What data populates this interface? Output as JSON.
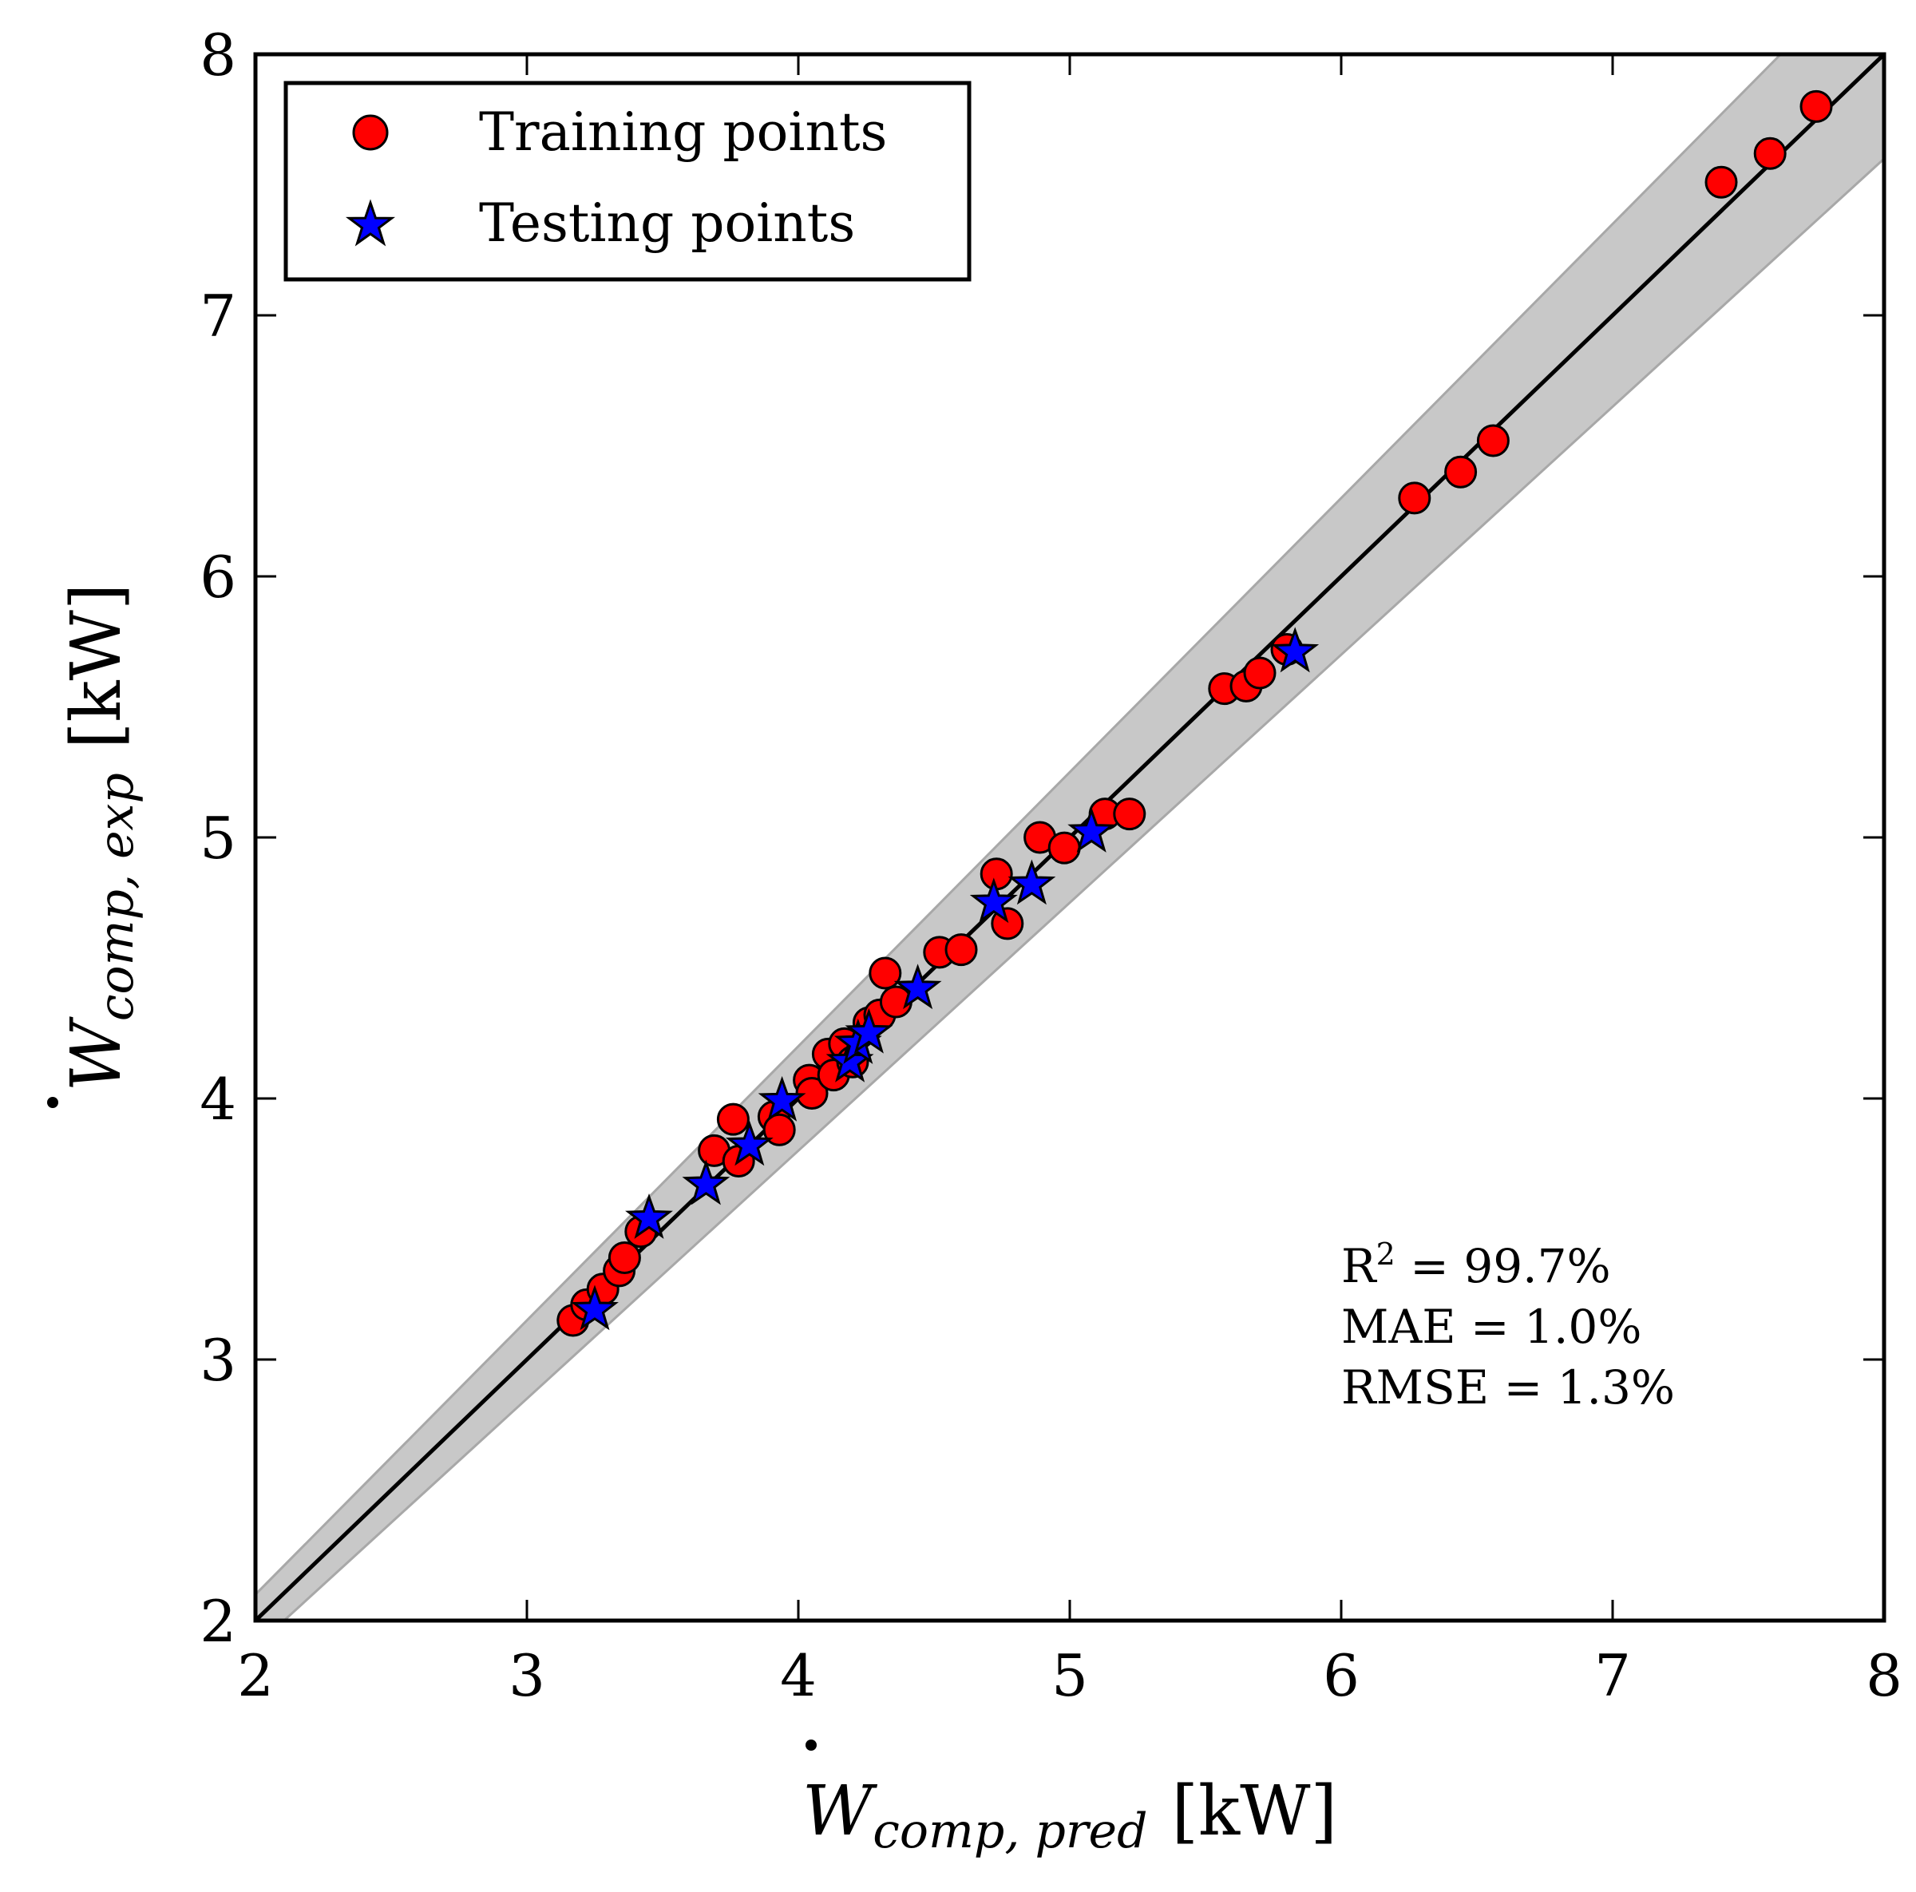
{
  "chart_data": {
    "type": "scatter",
    "xlabel": {
      "symbol": "W",
      "subscript": "comp, pred",
      "unit": "[kW]"
    },
    "ylabel": {
      "symbol": "W",
      "subscript": "comp, exp",
      "unit": "[kW]"
    },
    "xlim": [
      2,
      8
    ],
    "ylim": [
      2,
      8
    ],
    "xticks": [
      "2",
      "3",
      "4",
      "5",
      "6",
      "7",
      "8"
    ],
    "yticks": [
      "2",
      "3",
      "4",
      "5",
      "6",
      "7",
      "8"
    ],
    "legend_position": "top-left",
    "reference_line": {
      "slope": 1
    },
    "tolerance_band": {
      "upper_slope": 1.05,
      "lower_slope": 0.95,
      "color": "#c8c8c8"
    },
    "stats": {
      "r2_prefix": "R",
      "r2_sup": "2",
      "r2_rest": " = 99.7%",
      "mae": "MAE = 1.0%",
      "rmse": "RMSE = 1.3%"
    },
    "series": [
      {
        "name": "Training points",
        "marker": "circle",
        "color": "#ff0000",
        "points": [
          [
            3.17,
            3.15
          ],
          [
            3.22,
            3.21
          ],
          [
            3.28,
            3.27
          ],
          [
            3.34,
            3.34
          ],
          [
            3.36,
            3.39
          ],
          [
            3.42,
            3.49
          ],
          [
            3.69,
            3.8
          ],
          [
            3.76,
            3.92
          ],
          [
            3.78,
            3.76
          ],
          [
            3.91,
            3.93
          ],
          [
            3.93,
            3.88
          ],
          [
            4.04,
            4.07
          ],
          [
            4.05,
            4.02
          ],
          [
            4.11,
            4.17
          ],
          [
            4.13,
            4.09
          ],
          [
            4.17,
            4.21
          ],
          [
            4.2,
            4.14
          ],
          [
            4.26,
            4.29
          ],
          [
            4.3,
            4.32
          ],
          [
            4.32,
            4.48
          ],
          [
            4.36,
            4.37
          ],
          [
            4.52,
            4.56
          ],
          [
            4.6,
            4.57
          ],
          [
            4.73,
            4.86
          ],
          [
            4.77,
            4.67
          ],
          [
            4.89,
            5.0
          ],
          [
            4.98,
            4.96
          ],
          [
            5.13,
            5.09
          ],
          [
            5.22,
            5.09
          ],
          [
            5.57,
            5.57
          ],
          [
            5.65,
            5.58
          ],
          [
            5.7,
            5.63
          ],
          [
            5.8,
            5.72
          ],
          [
            6.27,
            6.3
          ],
          [
            6.44,
            6.4
          ],
          [
            6.56,
            6.52
          ],
          [
            7.4,
            7.51
          ],
          [
            7.58,
            7.62
          ],
          [
            7.75,
            7.8
          ]
        ]
      },
      {
        "name": "Testing points",
        "marker": "star",
        "color": "#0000ff",
        "points": [
          [
            3.25,
            3.19
          ],
          [
            3.45,
            3.54
          ],
          [
            3.66,
            3.67
          ],
          [
            3.82,
            3.82
          ],
          [
            3.94,
            3.99
          ],
          [
            4.19,
            4.14
          ],
          [
            4.22,
            4.21
          ],
          [
            4.26,
            4.25
          ],
          [
            4.44,
            4.42
          ],
          [
            4.72,
            4.75
          ],
          [
            4.86,
            4.82
          ],
          [
            5.08,
            5.02
          ],
          [
            5.83,
            5.71
          ]
        ]
      }
    ]
  }
}
